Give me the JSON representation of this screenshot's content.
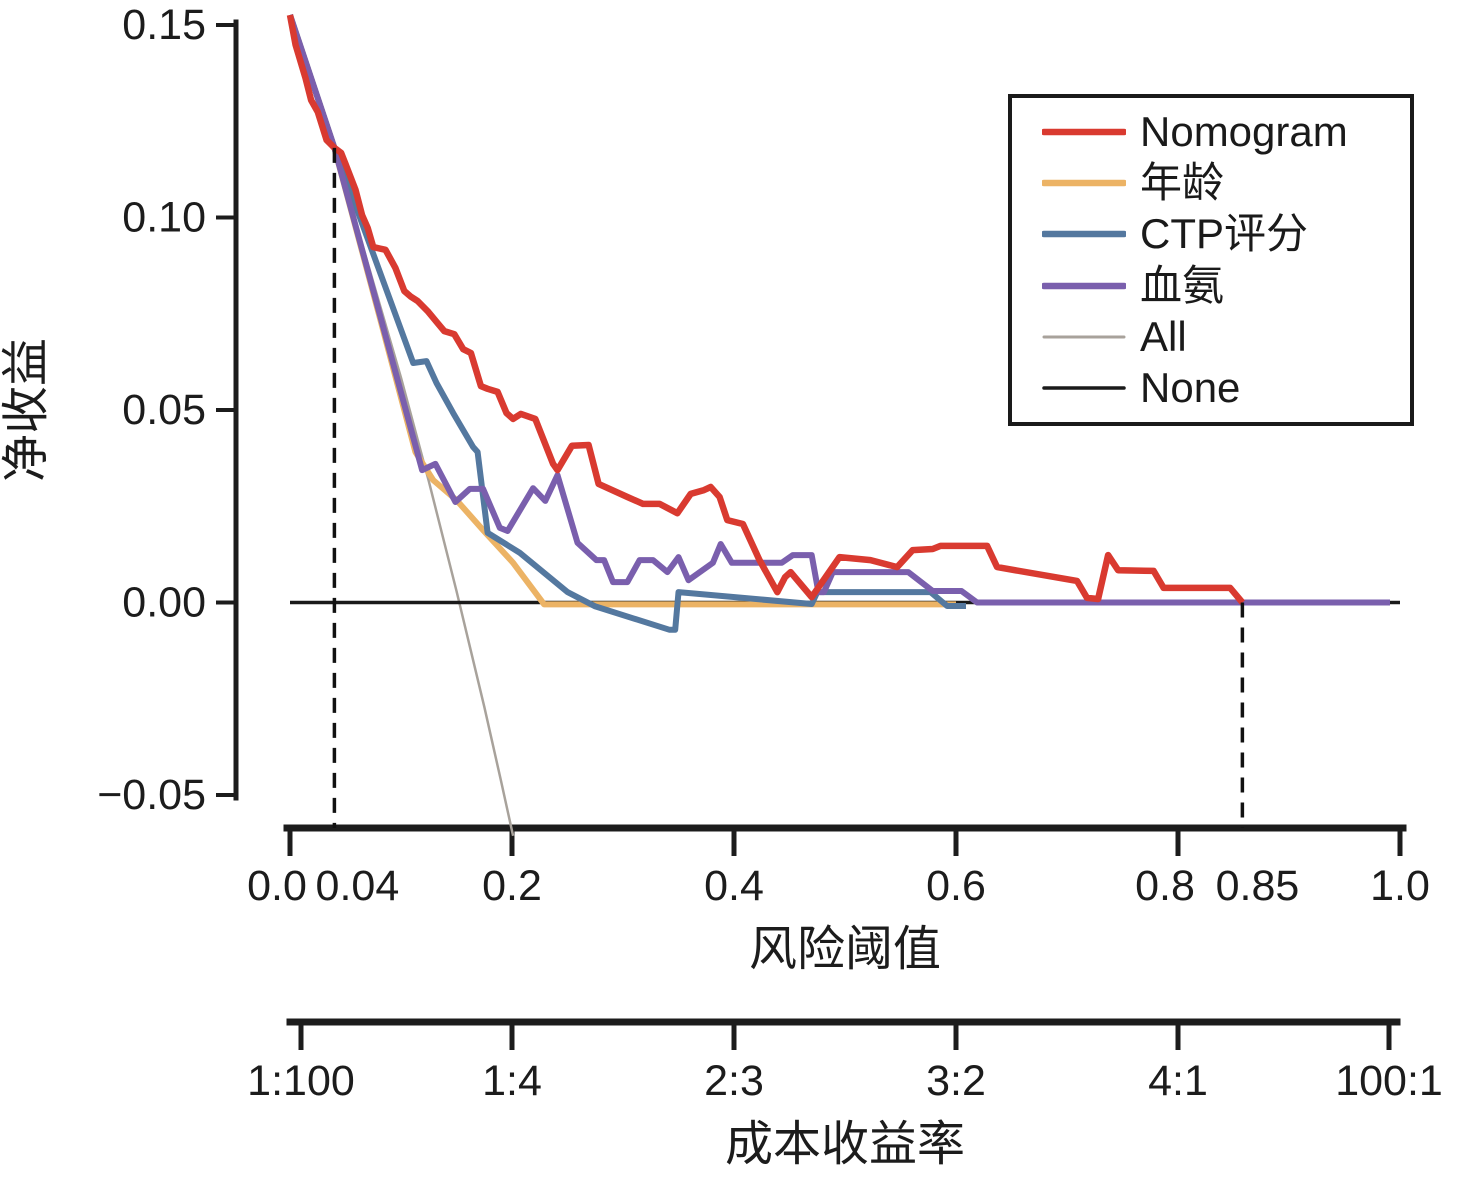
{
  "figure": {
    "background": "#ffffff"
  },
  "y_axis": {
    "title": "净收益",
    "tick_labels": [
      "0.15",
      "0.10",
      "0.05",
      "0.00",
      "-0.05"
    ],
    "tick_values": [
      0.15,
      0.1,
      0.05,
      0.0,
      -0.05
    ]
  },
  "x_axis": {
    "title": "风险阈值",
    "tick_labels": [
      "0.0",
      "0.04",
      "0.2",
      "0.4",
      "0.6",
      "0.8",
      "0.85",
      "1.0"
    ],
    "tick_values": [
      0.0,
      0.04,
      0.2,
      0.4,
      0.6,
      0.8,
      0.85,
      1.0
    ]
  },
  "ratio_axis": {
    "title": "成本收益率",
    "tick_labels": [
      "1:100",
      "1:4",
      "2:3",
      "3:2",
      "4:1",
      "100:1"
    ],
    "tick_values": [
      0.0099,
      0.2,
      0.4,
      0.6,
      0.8,
      0.9901
    ]
  },
  "legend": {
    "items": [
      {
        "label": "Nomogram",
        "color": "#d93a30"
      },
      {
        "label": "年龄",
        "color": "#ecb365"
      },
      {
        "label": "CTP评分",
        "color": "#54789f"
      },
      {
        "label": "血氨",
        "color": "#7a5fad"
      },
      {
        "label": "All",
        "color": "#a8a29b"
      },
      {
        "label": "None",
        "color": "#1a1a1a"
      }
    ]
  },
  "annotations": {
    "threshold_lines": [
      {
        "t": 0.04,
        "v_top": 0.1181,
        "label": "0.04"
      },
      {
        "t": 0.858,
        "v_top": 0.0,
        "label": "0.85"
      }
    ],
    "line_color": "#111111"
  },
  "chart_data": {
    "type": "line",
    "title": "",
    "xlabel": "风险阈值",
    "ylabel": "净收益",
    "xlabel2": "成本收益率",
    "xlim": [
      0,
      1
    ],
    "ylim": [
      -0.062,
      0.155
    ],
    "grid": false,
    "legend_position": "upper right",
    "prevalence": 0.153,
    "series": [
      {
        "name": "Nomogram",
        "color": "#d93a30",
        "width": 6.5,
        "points": [
          [
            0,
            0.1526
          ],
          [
            0.005,
            0.1448
          ],
          [
            0.014,
            0.1362
          ],
          [
            0.019,
            0.1305
          ],
          [
            0.025,
            0.1274
          ],
          [
            0.033,
            0.1201
          ],
          [
            0.04,
            0.1181
          ],
          [
            0.046,
            0.1168
          ],
          [
            0.05,
            0.1139
          ],
          [
            0.059,
            0.1072
          ],
          [
            0.065,
            0.1006
          ],
          [
            0.07,
            0.0973
          ],
          [
            0.075,
            0.0923
          ],
          [
            0.086,
            0.0916
          ],
          [
            0.095,
            0.0869
          ],
          [
            0.103,
            0.0809
          ],
          [
            0.109,
            0.0794
          ],
          [
            0.115,
            0.0783
          ],
          [
            0.124,
            0.0757
          ],
          [
            0.132,
            0.0729
          ],
          [
            0.139,
            0.0705
          ],
          [
            0.148,
            0.0697
          ],
          [
            0.156,
            0.0658
          ],
          [
            0.163,
            0.0648
          ],
          [
            0.172,
            0.0562
          ],
          [
            0.178,
            0.0555
          ],
          [
            0.187,
            0.0547
          ],
          [
            0.195,
            0.0492
          ],
          [
            0.201,
            0.0477
          ],
          [
            0.208,
            0.049
          ],
          [
            0.221,
            0.0477
          ],
          [
            0.237,
            0.036
          ],
          [
            0.241,
            0.0344
          ],
          [
            0.254,
            0.0407
          ],
          [
            0.269,
            0.0409
          ],
          [
            0.278,
            0.0308
          ],
          [
            0.304,
            0.0274
          ],
          [
            0.318,
            0.0256
          ],
          [
            0.333,
            0.0256
          ],
          [
            0.349,
            0.0232
          ],
          [
            0.361,
            0.0282
          ],
          [
            0.373,
            0.0292
          ],
          [
            0.379,
            0.03
          ],
          [
            0.387,
            0.0274
          ],
          [
            0.394,
            0.0214
          ],
          [
            0.408,
            0.0204
          ],
          [
            0.423,
            0.011
          ],
          [
            0.439,
            0.0027
          ],
          [
            0.446,
            0.0066
          ],
          [
            0.451,
            0.0079
          ],
          [
            0.47,
            0.0014
          ],
          [
            0.495,
            0.0118
          ],
          [
            0.523,
            0.011
          ],
          [
            0.547,
            0.0092
          ],
          [
            0.561,
            0.0136
          ],
          [
            0.579,
            0.0139
          ],
          [
            0.586,
            0.0147
          ],
          [
            0.628,
            0.0147
          ],
          [
            0.637,
            0.0092
          ],
          [
            0.709,
            0.0056
          ],
          [
            0.718,
            0.0012
          ],
          [
            0.728,
            0.0009
          ],
          [
            0.737,
            0.0123
          ],
          [
            0.746,
            0.0084
          ],
          [
            0.778,
            0.0082
          ],
          [
            0.787,
            0.0038
          ],
          [
            0.847,
            0.0038
          ],
          [
            0.858,
            0.0
          ]
        ]
      },
      {
        "name": "年龄",
        "color": "#ecb365",
        "width": 6,
        "points": [
          [
            0,
            0.1526
          ],
          [
            0.04,
            0.1181
          ],
          [
            0.081,
            0.0739
          ],
          [
            0.113,
            0.0391
          ],
          [
            0.129,
            0.0318
          ],
          [
            0.15,
            0.0266
          ],
          [
            0.174,
            0.0188
          ],
          [
            0.201,
            0.0103
          ],
          [
            0.229,
            -0.0005
          ],
          [
            0.6,
            -0.0005
          ]
        ]
      },
      {
        "name": "CTP评分",
        "color": "#54789f",
        "width": 6,
        "points": [
          [
            0,
            0.1526
          ],
          [
            0.04,
            0.1181
          ],
          [
            0.111,
            0.0622
          ],
          [
            0.123,
            0.0627
          ],
          [
            0.132,
            0.057
          ],
          [
            0.147,
            0.0492
          ],
          [
            0.165,
            0.0404
          ],
          [
            0.169,
            0.0391
          ],
          [
            0.178,
            0.0181
          ],
          [
            0.207,
            0.0129
          ],
          [
            0.25,
            0.0027
          ],
          [
            0.275,
            -0.001
          ],
          [
            0.342,
            -0.0071
          ],
          [
            0.347,
            -0.0071
          ],
          [
            0.35,
            0.0027
          ],
          [
            0.47,
            -0.0004
          ],
          [
            0.475,
            0.0027
          ],
          [
            0.577,
            0.0027
          ],
          [
            0.592,
            -0.0009
          ],
          [
            0.609,
            -0.0009
          ]
        ]
      },
      {
        "name": "血氨",
        "color": "#7a5fad",
        "width": 6,
        "points": [
          [
            0,
            0.1526
          ],
          [
            0.04,
            0.1181
          ],
          [
            0.119,
            0.0344
          ],
          [
            0.131,
            0.036
          ],
          [
            0.149,
            0.0261
          ],
          [
            0.162,
            0.0295
          ],
          [
            0.174,
            0.0295
          ],
          [
            0.189,
            0.0194
          ],
          [
            0.196,
            0.0186
          ],
          [
            0.219,
            0.0297
          ],
          [
            0.23,
            0.0264
          ],
          [
            0.241,
            0.0331
          ],
          [
            0.259,
            0.0155
          ],
          [
            0.276,
            0.011
          ],
          [
            0.283,
            0.011
          ],
          [
            0.291,
            0.0053
          ],
          [
            0.304,
            0.0053
          ],
          [
            0.315,
            0.011
          ],
          [
            0.327,
            0.011
          ],
          [
            0.34,
            0.0079
          ],
          [
            0.35,
            0.0118
          ],
          [
            0.359,
            0.0058
          ],
          [
            0.381,
            0.0103
          ],
          [
            0.388,
            0.0152
          ],
          [
            0.398,
            0.0103
          ],
          [
            0.443,
            0.0103
          ],
          [
            0.453,
            0.0123
          ],
          [
            0.47,
            0.0123
          ],
          [
            0.476,
            0.0027
          ],
          [
            0.481,
            0.0027
          ],
          [
            0.489,
            0.0079
          ],
          [
            0.557,
            0.0079
          ],
          [
            0.579,
            0.003
          ],
          [
            0.605,
            0.003
          ],
          [
            0.619,
            0.0
          ],
          [
            0.991,
            0.0
          ]
        ]
      },
      {
        "name": "All",
        "color": "#a8a29b",
        "width": 2.5,
        "points": [
          [
            0,
            0.1526
          ],
          [
            0.05,
            0.108
          ],
          [
            0.1,
            0.0584
          ],
          [
            0.125,
            0.0315
          ],
          [
            0.15,
            0.003
          ],
          [
            0.175,
            -0.0271
          ],
          [
            0.19,
            -0.0462
          ],
          [
            0.201,
            -0.0606
          ]
        ]
      },
      {
        "name": "None",
        "color": "#1a1a1a",
        "width": 3.5,
        "points": [
          [
            0,
            0.0
          ],
          [
            1.0,
            0.0
          ]
        ]
      }
    ]
  }
}
